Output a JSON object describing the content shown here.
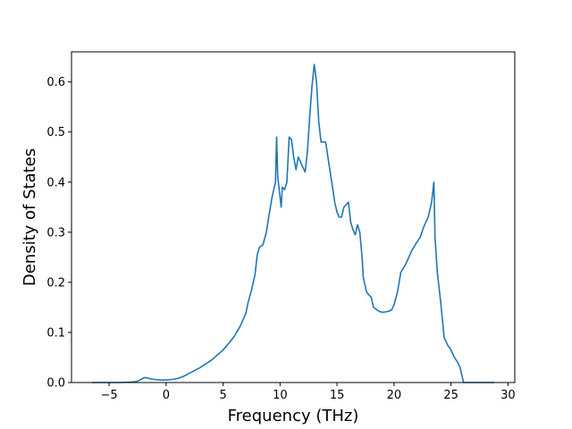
{
  "chart_data": {
    "type": "line",
    "xlabel": "Frequency (THz)",
    "ylabel": "Density of States",
    "xlim": [
      -8.3,
      30.6
    ],
    "ylim": [
      0.0,
      0.66
    ],
    "xticks": [
      -5,
      0,
      5,
      10,
      15,
      20,
      25,
      30
    ],
    "yticks": [
      0.0,
      0.1,
      0.2,
      0.3,
      0.4,
      0.5,
      0.6
    ],
    "xtick_labels": [
      "−5",
      "0",
      "5",
      "10",
      "15",
      "20",
      "25",
      "30"
    ],
    "ytick_labels": [
      "0.0",
      "0.1",
      "0.2",
      "0.3",
      "0.4",
      "0.5",
      "0.6"
    ],
    "grid": false,
    "line_color": "#1f77b4",
    "series": [
      {
        "x": [
          -6.5,
          -4.0,
          -3.0,
          -2.6,
          -2.3,
          -2.0,
          -1.8,
          -1.5,
          -1.0,
          -0.5,
          0.0,
          0.5,
          1.0,
          1.5,
          2.0,
          3.0,
          4.0,
          5.0,
          5.5,
          6.0,
          6.5,
          7.0,
          7.2,
          7.5,
          7.8,
          8.0,
          8.2,
          8.5,
          8.8,
          9.0,
          9.3,
          9.6,
          9.7,
          9.8,
          10.0,
          10.1,
          10.2,
          10.4,
          10.6,
          10.8,
          11.0,
          11.2,
          11.4,
          11.6,
          11.8,
          12.0,
          12.2,
          12.4,
          12.6,
          12.8,
          13.0,
          13.2,
          13.4,
          13.6,
          13.8,
          14.0,
          14.4,
          14.8,
          15.0,
          15.2,
          15.4,
          15.6,
          15.8,
          16.0,
          16.2,
          16.4,
          16.6,
          16.8,
          17.0,
          17.2,
          17.3,
          17.6,
          18.0,
          18.2,
          18.5,
          18.7,
          19.0,
          19.5,
          19.8,
          20.0,
          20.3,
          20.6,
          21.0,
          21.3,
          21.6,
          22.0,
          22.3,
          22.6,
          23.0,
          23.3,
          23.5,
          23.6,
          23.8,
          24.1,
          24.4,
          24.7,
          25.0,
          25.3,
          25.6,
          25.8,
          26.0,
          26.1,
          28.8
        ],
        "y": [
          0.0,
          0.0,
          0.001,
          0.002,
          0.005,
          0.009,
          0.01,
          0.008,
          0.006,
          0.005,
          0.005,
          0.006,
          0.008,
          0.012,
          0.018,
          0.03,
          0.045,
          0.065,
          0.078,
          0.093,
          0.112,
          0.138,
          0.16,
          0.185,
          0.215,
          0.255,
          0.27,
          0.275,
          0.3,
          0.33,
          0.37,
          0.4,
          0.49,
          0.41,
          0.37,
          0.35,
          0.39,
          0.385,
          0.4,
          0.49,
          0.485,
          0.45,
          0.425,
          0.45,
          0.44,
          0.43,
          0.42,
          0.46,
          0.53,
          0.59,
          0.635,
          0.6,
          0.52,
          0.48,
          0.48,
          0.48,
          0.42,
          0.36,
          0.34,
          0.33,
          0.33,
          0.35,
          0.355,
          0.36,
          0.32,
          0.305,
          0.295,
          0.315,
          0.3,
          0.25,
          0.21,
          0.18,
          0.17,
          0.15,
          0.145,
          0.142,
          0.14,
          0.142,
          0.145,
          0.155,
          0.18,
          0.22,
          0.235,
          0.25,
          0.265,
          0.28,
          0.29,
          0.31,
          0.33,
          0.36,
          0.4,
          0.29,
          0.22,
          0.16,
          0.09,
          0.075,
          0.065,
          0.05,
          0.04,
          0.03,
          0.01,
          0.0,
          0.0
        ]
      }
    ]
  }
}
